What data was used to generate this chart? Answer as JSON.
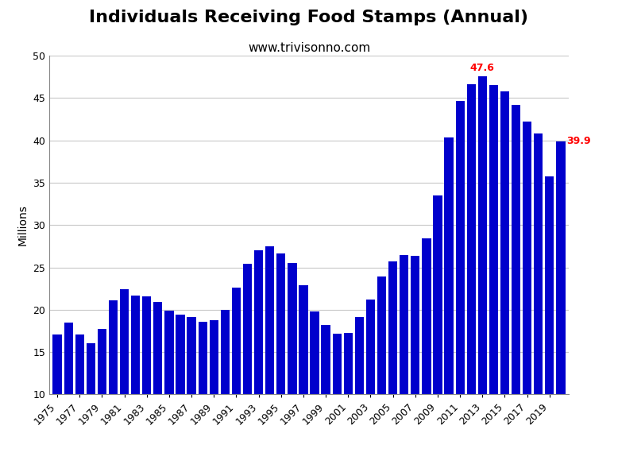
{
  "title": "Individuals Receiving Food Stamps (Annual)",
  "subtitle": "www.trivisonno.com",
  "ylabel": "Millions",
  "bar_color": "#0000cc",
  "background_color": "#ffffff",
  "years": [
    1975,
    1976,
    1977,
    1978,
    1979,
    1980,
    1981,
    1982,
    1983,
    1984,
    1985,
    1986,
    1987,
    1988,
    1989,
    1990,
    1991,
    1992,
    1993,
    1994,
    1995,
    1996,
    1997,
    1998,
    1999,
    2000,
    2001,
    2002,
    2003,
    2004,
    2005,
    2006,
    2007,
    2008,
    2009,
    2010,
    2011,
    2012,
    2013,
    2014,
    2015,
    2016,
    2017,
    2018,
    2019,
    2020
  ],
  "values": [
    17.1,
    18.5,
    17.1,
    16.0,
    17.7,
    21.1,
    22.4,
    21.7,
    21.6,
    20.9,
    19.9,
    19.4,
    19.1,
    18.6,
    18.8,
    20.0,
    22.6,
    25.4,
    27.0,
    27.5,
    26.6,
    25.5,
    22.9,
    19.8,
    18.2,
    17.2,
    17.3,
    19.1,
    21.2,
    23.9,
    25.7,
    26.5,
    26.4,
    28.4,
    33.5,
    40.3,
    44.7,
    46.6,
    47.6,
    46.5,
    45.8,
    44.2,
    42.2,
    40.8,
    35.7,
    39.9
  ],
  "ylim_min": 10,
  "ylim_max": 50,
  "yticks": [
    10,
    15,
    20,
    25,
    30,
    35,
    40,
    45,
    50
  ],
  "annotate_max_year": 2013,
  "annotate_max_val": 47.6,
  "annotate_last_year": 2020,
  "annotate_last_val": 39.9,
  "annotation_color": "#ff0000",
  "grid_color": "#c8c8c8",
  "title_fontsize": 16,
  "subtitle_fontsize": 11
}
